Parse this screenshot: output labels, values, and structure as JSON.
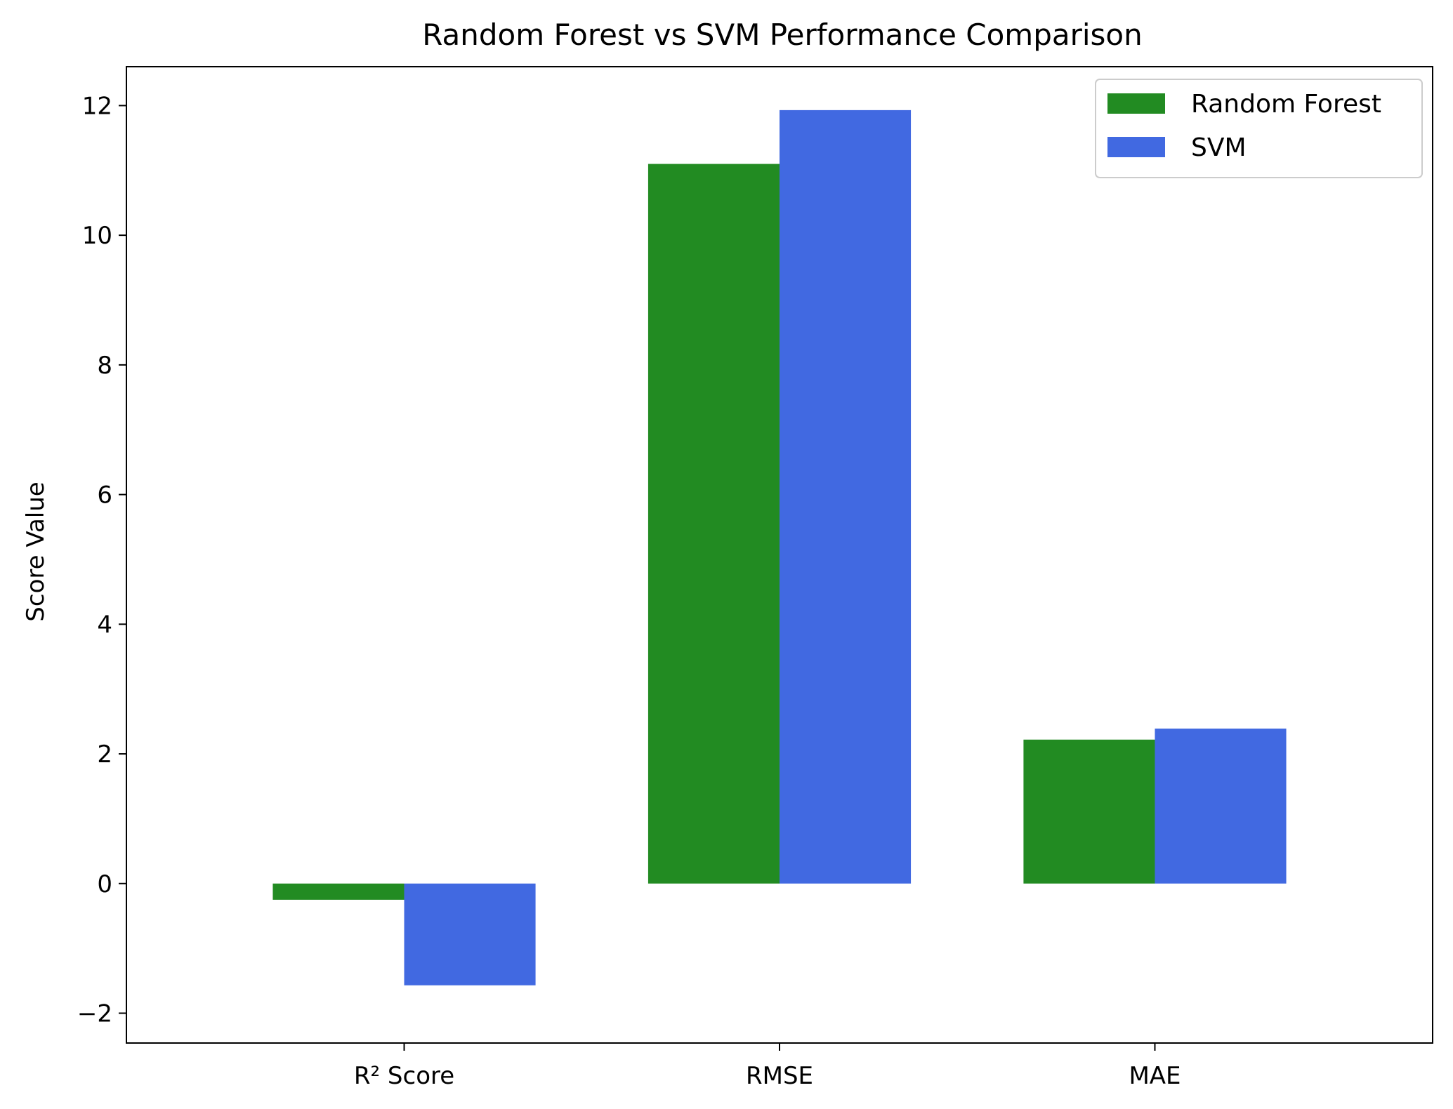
{
  "chart_data": {
    "type": "bar",
    "title": "Random Forest vs SVM Performance Comparison",
    "xlabel": "",
    "ylabel": "Score Value",
    "categories": [
      "R² Score",
      "RMSE",
      "MAE"
    ],
    "series": [
      {
        "name": "Random Forest",
        "color": "#228b22",
        "values": [
          -0.25,
          11.1,
          2.22
        ]
      },
      {
        "name": "SVM",
        "color": "#4169e1",
        "values": [
          -1.57,
          11.93,
          2.39
        ]
      }
    ],
    "ylim": [
      -2.46,
      12.6
    ],
    "yticks": [
      -2,
      0,
      2,
      4,
      6,
      8,
      10,
      12
    ],
    "ytick_labels": [
      "−2",
      "0",
      "2",
      "4",
      "6",
      "8",
      "10",
      "12"
    ],
    "grid": false,
    "legend_position": "top-right"
  }
}
